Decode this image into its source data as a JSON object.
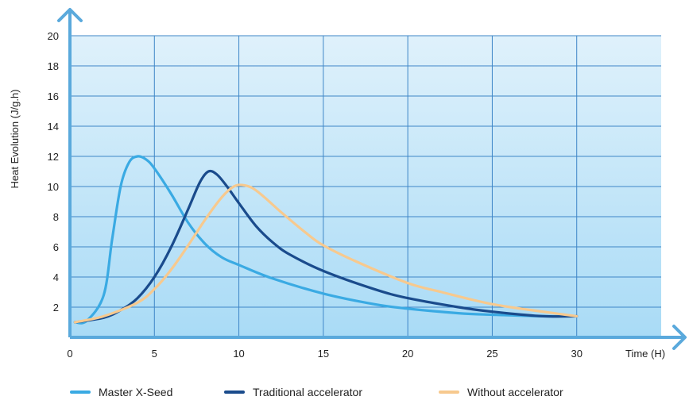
{
  "chart_data": {
    "type": "line",
    "xlabel": "Time (H)",
    "ylabel": "Heat Evolution (J/g.h)",
    "xlim": [
      0,
      35
    ],
    "ylim": [
      0,
      20
    ],
    "x_ticks": [
      0,
      5,
      10,
      15,
      20,
      25,
      30
    ],
    "y_ticks": [
      2,
      4,
      6,
      8,
      10,
      12,
      14,
      16,
      18,
      20
    ],
    "grid": true,
    "legend_position": "bottom",
    "colors": {
      "plot_top": "#dff1fb",
      "plot_bottom": "#a9dbf6",
      "grid": "#3e86c7",
      "axis": "#5aa9dc"
    },
    "series": [
      {
        "name": "Master X-Seed",
        "color": "#3aaae3",
        "points": [
          [
            0.3,
            1.0
          ],
          [
            1,
            1.1
          ],
          [
            2,
            2.8
          ],
          [
            2.5,
            6.5
          ],
          [
            3,
            10.0
          ],
          [
            3.5,
            11.6
          ],
          [
            4,
            12.0
          ],
          [
            4.5,
            11.8
          ],
          [
            5,
            11.2
          ],
          [
            6,
            9.5
          ],
          [
            7,
            7.6
          ],
          [
            8,
            6.2
          ],
          [
            9,
            5.3
          ],
          [
            10,
            4.8
          ],
          [
            12,
            3.9
          ],
          [
            15,
            2.9
          ],
          [
            18,
            2.2
          ],
          [
            20,
            1.9
          ],
          [
            23,
            1.6
          ],
          [
            25,
            1.5
          ],
          [
            28,
            1.4
          ],
          [
            30,
            1.4
          ]
        ]
      },
      {
        "name": "Traditional accelerator",
        "color": "#1a4b8c",
        "points": [
          [
            0.3,
            1.0
          ],
          [
            2,
            1.3
          ],
          [
            3,
            1.8
          ],
          [
            4,
            2.6
          ],
          [
            5,
            4.0
          ],
          [
            6,
            6.0
          ],
          [
            7,
            8.5
          ],
          [
            7.7,
            10.3
          ],
          [
            8.2,
            11.0
          ],
          [
            8.7,
            10.8
          ],
          [
            9.3,
            10.0
          ],
          [
            10,
            8.9
          ],
          [
            11,
            7.4
          ],
          [
            12,
            6.3
          ],
          [
            13,
            5.5
          ],
          [
            15,
            4.4
          ],
          [
            18,
            3.2
          ],
          [
            20,
            2.6
          ],
          [
            23,
            2.0
          ],
          [
            25,
            1.7
          ],
          [
            28,
            1.4
          ],
          [
            30,
            1.4
          ]
        ]
      },
      {
        "name": "Without accelerator",
        "color": "#f7c98e",
        "points": [
          [
            0.3,
            1.0
          ],
          [
            2,
            1.4
          ],
          [
            4,
            2.3
          ],
          [
            5,
            3.2
          ],
          [
            6,
            4.5
          ],
          [
            7,
            6.1
          ],
          [
            8,
            7.8
          ],
          [
            9,
            9.3
          ],
          [
            9.7,
            10.0
          ],
          [
            10.2,
            10.1
          ],
          [
            10.8,
            9.9
          ],
          [
            11.5,
            9.3
          ],
          [
            12.5,
            8.3
          ],
          [
            14,
            6.9
          ],
          [
            15,
            6.1
          ],
          [
            17,
            5.0
          ],
          [
            20,
            3.6
          ],
          [
            22,
            3.0
          ],
          [
            25,
            2.2
          ],
          [
            28,
            1.7
          ],
          [
            30,
            1.4
          ]
        ]
      }
    ]
  }
}
